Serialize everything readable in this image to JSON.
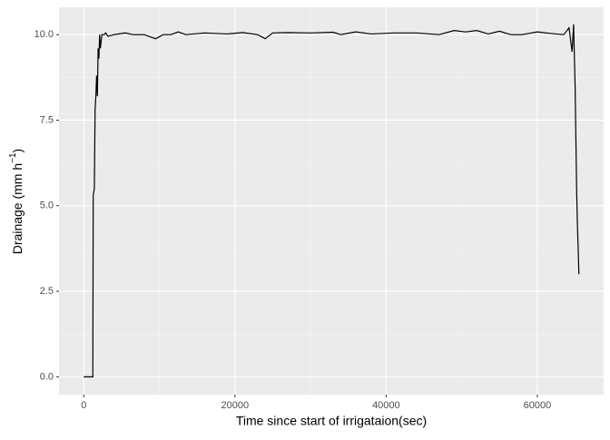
{
  "chart_data": {
    "type": "line",
    "x_label": "Time since start of irrigataion(sec)",
    "y_label_parts": [
      "Drainage (mm h",
      "−1",
      ")"
    ],
    "x": [
      0,
      1200,
      1250,
      1400,
      1500,
      1600,
      1700,
      1800,
      1900,
      2000,
      2100,
      2200,
      2400,
      2700,
      2900,
      3200,
      4000,
      5500,
      6500,
      8000,
      9500,
      10500,
      11500,
      12500,
      13500,
      16000,
      19000,
      21000,
      23000,
      24000,
      25000,
      27000,
      30000,
      33000,
      34000,
      36000,
      38000,
      41000,
      44000,
      47000,
      49000,
      50500,
      52000,
      53500,
      55000,
      56500,
      58000,
      60000,
      62000,
      63500,
      64200,
      64600,
      64800,
      65000,
      65100,
      65200,
      65300,
      65400,
      65500
    ],
    "series": [
      {
        "color": "#000000",
        "values": [
          0,
          0,
          5.3,
          5.5,
          7.8,
          8.2,
          8.8,
          8.2,
          9.6,
          9.3,
          10.0,
          9.6,
          10.0,
          10.0,
          10.05,
          9.95,
          10.0,
          10.05,
          10.0,
          10.0,
          9.88,
          10.0,
          10.0,
          10.08,
          10.0,
          10.05,
          10.02,
          10.06,
          10.0,
          9.88,
          10.05,
          10.06,
          10.05,
          10.07,
          10.0,
          10.08,
          10.02,
          10.05,
          10.05,
          10.0,
          10.12,
          10.08,
          10.12,
          10.02,
          10.1,
          10.0,
          10.0,
          10.08,
          10.03,
          10.0,
          10.2,
          9.5,
          10.3,
          8.5,
          7.0,
          5.5,
          4.5,
          3.8,
          3.0
        ]
      }
    ],
    "xlim": [
      -3275,
      68775
    ],
    "xticks": [
      0,
      20000,
      40000,
      60000
    ],
    "ylim": [
      -0.52,
      10.8
    ],
    "yticks": [
      {
        "value": 0,
        "label": "0.0"
      },
      {
        "value": 2.5,
        "label": "2.5"
      },
      {
        "value": 5,
        "label": "5.0"
      },
      {
        "value": 7.5,
        "label": "7.5"
      },
      {
        "value": 10,
        "label": "10.0"
      }
    ],
    "grid": true,
    "panel_color": "#ebebeb"
  }
}
